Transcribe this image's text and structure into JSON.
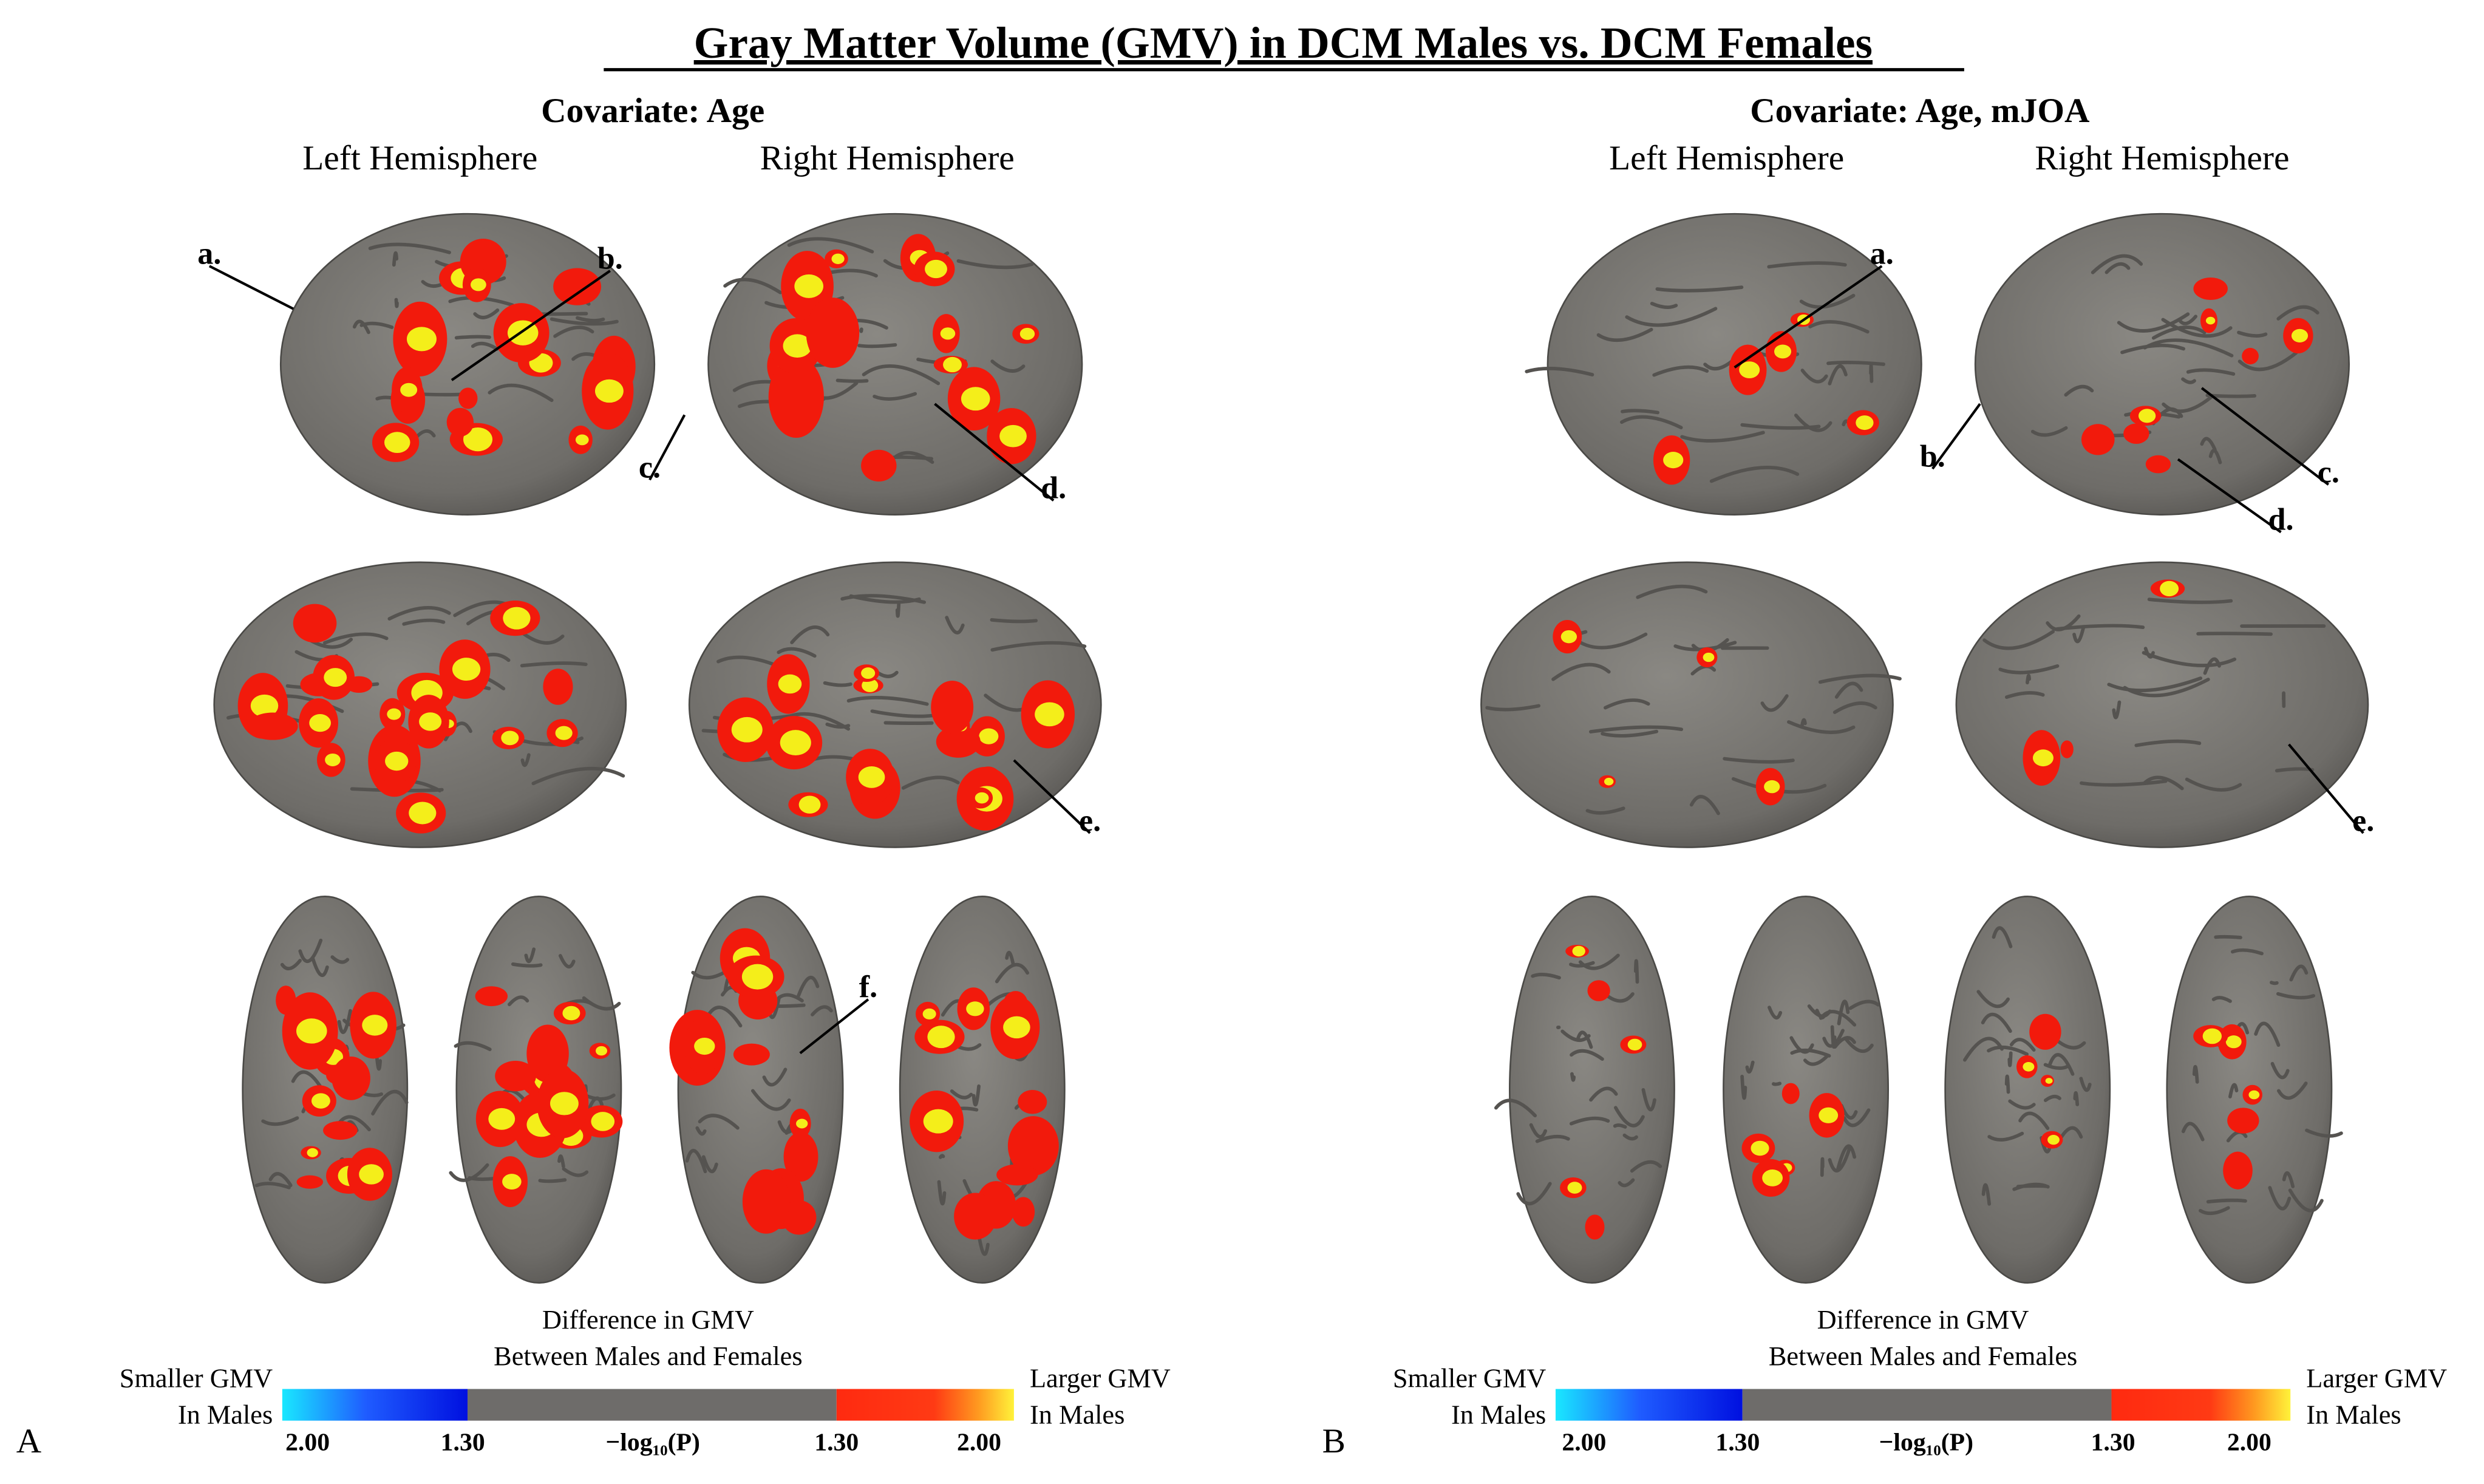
{
  "title": "Gray Matter Volume (GMV) in DCM Males vs. DCM Females",
  "panels": [
    {
      "letter": "A",
      "covariate": "Covariate: Age",
      "hemispheres": [
        "Left Hemisphere",
        "Right Hemisphere"
      ],
      "annotations": [
        "a.",
        "b.",
        "c.",
        "d.",
        "e.",
        "f."
      ],
      "colorbar": {
        "title": [
          "Difference in GMV",
          "Between Males and Females"
        ],
        "left": [
          "Smaller GMV",
          "In Males"
        ],
        "right": [
          "Larger GMV",
          "In Males"
        ],
        "ticks": [
          "2.00",
          "1.30",
          "−log₁₀(P)",
          "1.30",
          "2.00"
        ]
      }
    },
    {
      "letter": "B",
      "covariate": "Covariate: Age, mJOA",
      "hemispheres": [
        "Left Hemisphere",
        "Right Hemisphere"
      ],
      "annotations": [
        "a.",
        "b.",
        "c.",
        "d.",
        "e."
      ],
      "colorbar": {
        "title": [
          "Difference in GMV",
          "Between Males and Females"
        ],
        "left": [
          "Smaller GMV",
          "In Males"
        ],
        "right": [
          "Larger GMV",
          "In Males"
        ],
        "ticks": [
          "2.00",
          "1.30",
          "−log₁₀(P)",
          "1.30",
          "2.00"
        ]
      }
    }
  ]
}
